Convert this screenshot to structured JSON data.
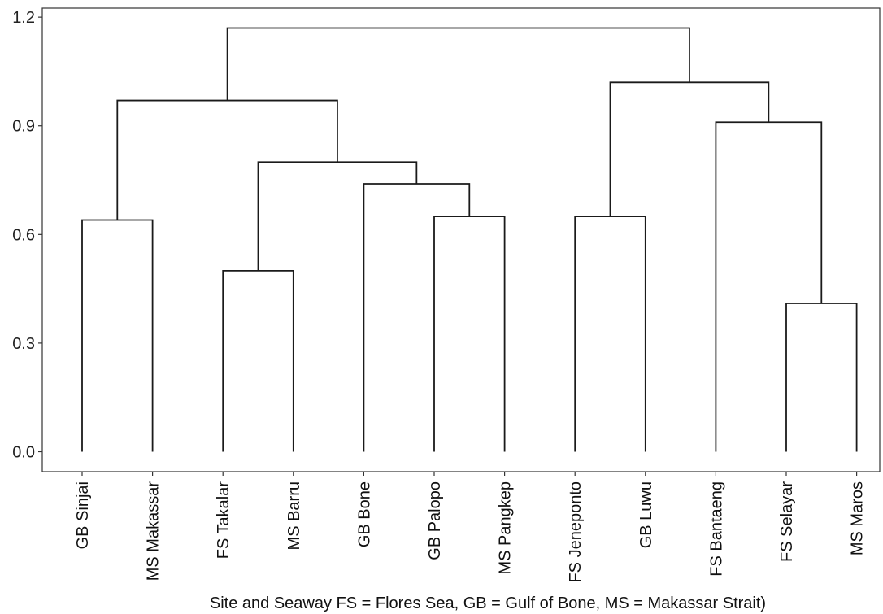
{
  "chart_data": {
    "type": "dendrogram",
    "xlabel": "Site and Seaway FS = Flores Sea, GB = Gulf of Bone, MS = Makassar Strait)",
    "ylabel": "",
    "ylim": [
      -0.055,
      1.225
    ],
    "yticks": [
      0.0,
      0.3,
      0.6,
      0.9,
      1.2
    ],
    "ytick_labels": [
      "0.0",
      "0.3",
      "0.6",
      "0.9",
      "1.2"
    ],
    "leaves": [
      "GB Sinjai",
      "MS Makassar",
      "FS Takalar",
      "MS Barru",
      "GB Bone",
      "GB Palopo",
      "MS Pangkep",
      "FS Jeneponto",
      "GB Luwu",
      "FS Bantaeng",
      "FS Selayar",
      "MS Maros"
    ],
    "merges": [
      {
        "id": "m1",
        "height": 0.64,
        "left": "GB Sinjai",
        "right": "MS Makassar"
      },
      {
        "id": "m2",
        "height": 0.5,
        "left": "FS Takalar",
        "right": "MS Barru"
      },
      {
        "id": "m3",
        "height": 0.65,
        "left": "GB Palopo",
        "right": "MS Pangkep"
      },
      {
        "id": "m4",
        "height": 0.74,
        "left": "GB Bone",
        "right": "m3"
      },
      {
        "id": "m5",
        "height": 0.8,
        "left": "m2",
        "right": "m4"
      },
      {
        "id": "m6",
        "height": 0.97,
        "left": "m1",
        "right": "m5"
      },
      {
        "id": "m7",
        "height": 0.65,
        "left": "FS Jeneponto",
        "right": "GB Luwu"
      },
      {
        "id": "m8",
        "height": 0.41,
        "left": "FS Selayar",
        "right": "MS Maros"
      },
      {
        "id": "m9",
        "height": 0.91,
        "left": "FS Bantaeng",
        "right": "m8"
      },
      {
        "id": "m10",
        "height": 1.02,
        "left": "m7",
        "right": "m9"
      },
      {
        "id": "m11",
        "height": 1.17,
        "left": "m6",
        "right": "m10"
      }
    ],
    "grid": false,
    "legend": "none"
  }
}
